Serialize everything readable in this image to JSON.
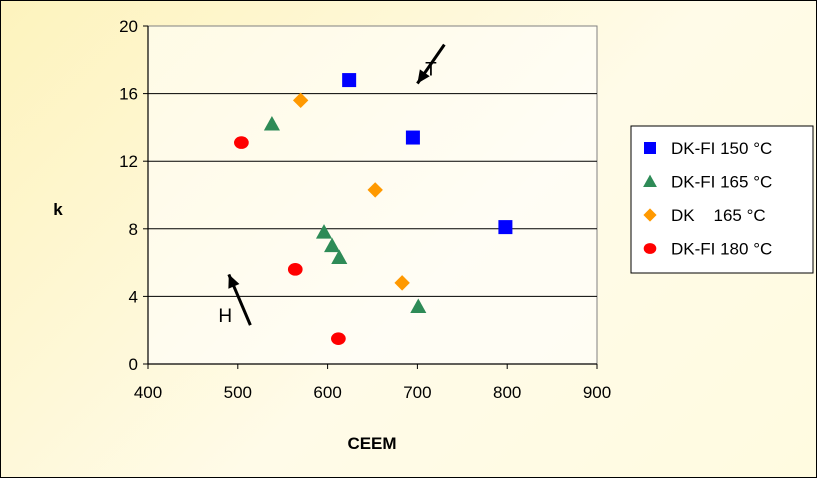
{
  "chart_data": {
    "type": "scatter",
    "xlabel": "CEEM",
    "ylabel": "k",
    "xlim": [
      400,
      900
    ],
    "ylim": [
      0,
      20
    ],
    "xticks": [
      "400",
      "500",
      "600",
      "700",
      "800",
      "900"
    ],
    "yticks": [
      "0",
      "4",
      "8",
      "12",
      "16",
      "20"
    ],
    "grid": "horizontal",
    "legend_placement": "right",
    "series": [
      {
        "name": "DK-FI 150 °C",
        "marker": "square",
        "color": "#0000ff",
        "points": [
          [
            624,
            16.8
          ],
          [
            695,
            13.4
          ],
          [
            798,
            8.1
          ]
        ]
      },
      {
        "name": "DK-FI 165 °C",
        "marker": "triangle",
        "color": "#2e8b57",
        "points": [
          [
            538,
            14.2
          ],
          [
            596,
            7.8
          ],
          [
            605,
            7.0
          ],
          [
            613,
            6.3
          ],
          [
            701,
            3.4
          ]
        ]
      },
      {
        "name": "DK    165 °C",
        "marker": "diamond",
        "color": "#ff9900",
        "points": [
          [
            570,
            15.6
          ],
          [
            653,
            10.3
          ],
          [
            683,
            4.8
          ]
        ]
      },
      {
        "name": "DK-FI 180 °C",
        "marker": "circle",
        "color": "#ff0000",
        "points": [
          [
            504,
            13.1
          ],
          [
            564,
            5.6
          ],
          [
            612,
            1.5
          ]
        ]
      }
    ],
    "annotations": [
      {
        "text": "T",
        "x": 715,
        "y": 17.5,
        "arrow_from": [
          730,
          18.9
        ],
        "arrow_to": [
          700,
          16.6
        ]
      },
      {
        "text": "H",
        "x": 486,
        "y": 2.9,
        "arrow_from": [
          514,
          2.3
        ],
        "arrow_to": [
          490,
          5.3
        ]
      }
    ]
  }
}
